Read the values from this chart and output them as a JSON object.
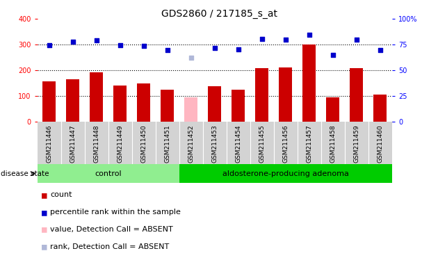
{
  "title": "GDS2860 / 217185_s_at",
  "samples": [
    "GSM211446",
    "GSM211447",
    "GSM211448",
    "GSM211449",
    "GSM211450",
    "GSM211451",
    "GSM211452",
    "GSM211453",
    "GSM211454",
    "GSM211455",
    "GSM211456",
    "GSM211457",
    "GSM211458",
    "GSM211459",
    "GSM211460"
  ],
  "bar_values": [
    155,
    163,
    190,
    140,
    147,
    123,
    95,
    137,
    125,
    207,
    210,
    300,
    95,
    207,
    105
  ],
  "bar_absent": [
    false,
    false,
    false,
    false,
    false,
    false,
    true,
    false,
    false,
    false,
    false,
    false,
    false,
    false,
    false
  ],
  "scatter_values": [
    298,
    310,
    315,
    297,
    295,
    278,
    248,
    287,
    280,
    320,
    318,
    338,
    258,
    318,
    278
  ],
  "scatter_absent": [
    false,
    false,
    false,
    false,
    false,
    false,
    true,
    false,
    false,
    false,
    false,
    false,
    false,
    false,
    false
  ],
  "ylim_left": [
    0,
    400
  ],
  "ylim_right": [
    0,
    100
  ],
  "yticks_left": [
    0,
    100,
    200,
    300,
    400
  ],
  "yticks_right": [
    0,
    25,
    50,
    75,
    100
  ],
  "ytick_labels_right": [
    "0",
    "25",
    "50",
    "75",
    "100%"
  ],
  "control_count": 6,
  "bar_color_present": "#cc0000",
  "bar_color_absent": "#ffb6c1",
  "scatter_color_present": "#0000cc",
  "scatter_color_absent": "#b0b8d8",
  "control_color": "#90ee90",
  "adenoma_color": "#00cc00",
  "group_bg_color": "#d3d3d3",
  "plot_bg_color": "#ffffff",
  "legend_items": [
    {
      "label": "count",
      "color": "#cc0000"
    },
    {
      "label": "percentile rank within the sample",
      "color": "#0000cc"
    },
    {
      "label": "value, Detection Call = ABSENT",
      "color": "#ffb6c1"
    },
    {
      "label": "rank, Detection Call = ABSENT",
      "color": "#b0b8d8"
    }
  ]
}
